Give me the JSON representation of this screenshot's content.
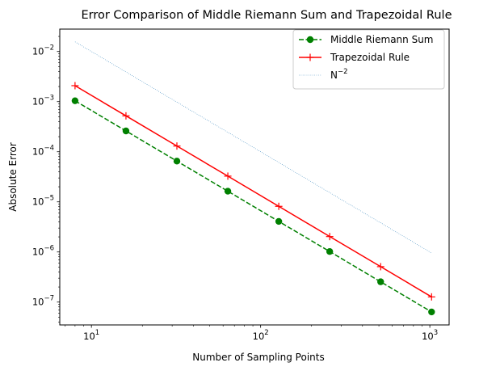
{
  "chart_data": {
    "type": "line",
    "title": "Error Comparison of Middle Riemann Sum and Trapezoidal Rule",
    "xlabel": "Number of Sampling Points",
    "ylabel": "Absolute Error",
    "xscale": "log",
    "yscale": "log",
    "xlim": [
      6.5,
      1300
    ],
    "ylim": [
      3.5e-08,
      0.028
    ],
    "xticks": [
      {
        "value": 10,
        "base": "10",
        "exp": "1"
      },
      {
        "value": 100,
        "base": "10",
        "exp": "2"
      },
      {
        "value": 1000,
        "base": "10",
        "exp": "3"
      }
    ],
    "yticks": [
      {
        "value": 1e-07,
        "base": "10",
        "exp": "−7"
      },
      {
        "value": 1e-06,
        "base": "10",
        "exp": "−6"
      },
      {
        "value": 1e-05,
        "base": "10",
        "exp": "−5"
      },
      {
        "value": 0.0001,
        "base": "10",
        "exp": "−4"
      },
      {
        "value": 0.001,
        "base": "10",
        "exp": "−3"
      },
      {
        "value": 0.01,
        "base": "10",
        "exp": "−2"
      }
    ],
    "grid": false,
    "legend_position": "top-right",
    "series": [
      {
        "name": "Middle Riemann Sum",
        "color": "#008000",
        "line_style": "dashed",
        "marker": "circle",
        "x": [
          8,
          16,
          32,
          64,
          128,
          256,
          512,
          1024
        ],
        "y": [
          0.00104,
          0.00026,
          6.5e-05,
          1.63e-05,
          4.07e-06,
          1.02e-06,
          2.54e-07,
          6.36e-08
        ]
      },
      {
        "name": "Trapezoidal Rule",
        "color": "#ff0000",
        "line_style": "solid",
        "marker": "plus",
        "x": [
          8,
          16,
          32,
          64,
          128,
          256,
          512,
          1024
        ],
        "y": [
          0.00208,
          0.00052,
          0.00013,
          3.26e-05,
          8.14e-06,
          2.03e-06,
          5.09e-07,
          1.27e-07
        ]
      },
      {
        "name": "N",
        "name_sup": "−2",
        "color": "#1f77b4",
        "line_style": "dotted",
        "marker": "none",
        "x": [
          8,
          1024
        ],
        "y": [
          0.015625,
          9.54e-07
        ]
      }
    ]
  }
}
